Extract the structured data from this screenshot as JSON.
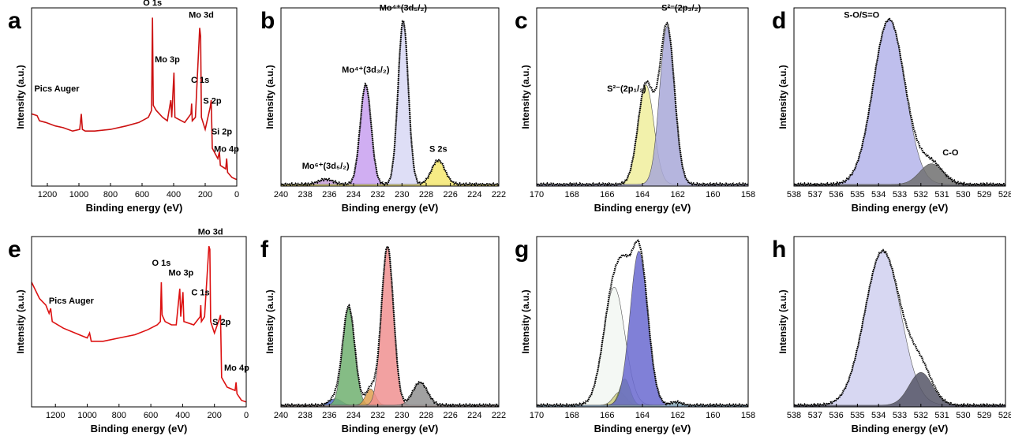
{
  "chart_data": [
    {
      "panel": "a",
      "type": "line",
      "xlabel": "Binding energy (eV)",
      "ylabel": "Intensity (a.u.)",
      "xlim": [
        1300,
        0
      ],
      "ylim": [
        0,
        1
      ],
      "reversed_x": true,
      "xticks": [
        1200,
        1000,
        800,
        600,
        400,
        200,
        0
      ],
      "line_color": "#cc1111",
      "survey": [
        [
          1300,
          0.42
        ],
        [
          1265,
          0.41
        ],
        [
          1250,
          0.38
        ],
        [
          1210,
          0.37
        ],
        [
          1150,
          0.35
        ],
        [
          1100,
          0.34
        ],
        [
          1040,
          0.32
        ],
        [
          995,
          0.33
        ],
        [
          985,
          0.42
        ],
        [
          978,
          0.33
        ],
        [
          960,
          0.32
        ],
        [
          900,
          0.32
        ],
        [
          800,
          0.33
        ],
        [
          700,
          0.35
        ],
        [
          620,
          0.37
        ],
        [
          560,
          0.4
        ],
        [
          540,
          0.44
        ],
        [
          534,
          0.98
        ],
        [
          529,
          0.47
        ],
        [
          510,
          0.44
        ],
        [
          470,
          0.4
        ],
        [
          440,
          0.38
        ],
        [
          418,
          0.5
        ],
        [
          412,
          0.4
        ],
        [
          398,
          0.66
        ],
        [
          392,
          0.4
        ],
        [
          330,
          0.37
        ],
        [
          290,
          0.42
        ],
        [
          286,
          0.48
        ],
        [
          282,
          0.38
        ],
        [
          262,
          0.4
        ],
        [
          235,
          0.92
        ],
        [
          229,
          0.87
        ],
        [
          224,
          0.4
        ],
        [
          200,
          0.33
        ],
        [
          168,
          0.46
        ],
        [
          162,
          0.5
        ],
        [
          155,
          0.22
        ],
        [
          120,
          0.16
        ],
        [
          110,
          0.2
        ],
        [
          104,
          0.12
        ],
        [
          70,
          0.1
        ],
        [
          64,
          0.16
        ],
        [
          58,
          0.08
        ],
        [
          30,
          0.05
        ],
        [
          5,
          0.04
        ],
        [
          0,
          0.04
        ]
      ],
      "annotations": [
        {
          "text": "O 1s",
          "x": 534,
          "y": 1.05
        },
        {
          "text": "Mo 3d",
          "x": 225,
          "y": 0.98
        },
        {
          "text": "Mo 3p",
          "x": 440,
          "y": 0.72
        },
        {
          "text": "C 1s",
          "x": 232,
          "y": 0.6
        },
        {
          "text": "Pics Auger",
          "x": 1140,
          "y": 0.55
        },
        {
          "text": "S 2p",
          "x": 155,
          "y": 0.48
        },
        {
          "text": "Si 2p",
          "x": 95,
          "y": 0.3
        },
        {
          "text": "Mo 4p",
          "x": 65,
          "y": 0.2
        }
      ]
    },
    {
      "panel": "b",
      "type": "area",
      "xlabel": "Binding energy (eV)",
      "ylabel": "Intensity (a.u.)",
      "xlim": [
        240,
        222
      ],
      "ylim": [
        0,
        1
      ],
      "reversed_x": true,
      "xticks": [
        240,
        238,
        236,
        234,
        232,
        230,
        228,
        226,
        224,
        222
      ],
      "components": [
        {
          "name": "Mo6+",
          "center": 236.3,
          "height": 0.03,
          "width": 0.6,
          "color": "#c8a0d8"
        },
        {
          "name": "Mo4+ 3d3/2",
          "center": 233.0,
          "height": 0.58,
          "width": 0.45,
          "color": "#c8a0f0"
        },
        {
          "name": "Mo4+ 3d5/2",
          "center": 229.9,
          "height": 0.95,
          "width": 0.42,
          "color": "#d8d8f5"
        },
        {
          "name": "S 2s",
          "center": 227.0,
          "height": 0.14,
          "width": 0.55,
          "color": "#f5e870"
        }
      ],
      "annotations": [
        {
          "text": "Mo⁴⁺(3d₅/₂)",
          "x": 229.9,
          "y": 1.02
        },
        {
          "text": "Mo⁴⁺(3d₃/₂)",
          "x": 233.0,
          "y": 0.66
        },
        {
          "text": "Mo⁶⁺(3d₅/₂)",
          "x": 236.3,
          "y": 0.1
        },
        {
          "text": "S 2s",
          "x": 227.0,
          "y": 0.2
        }
      ]
    },
    {
      "panel": "c",
      "type": "area",
      "xlabel": "Binding energy (eV)",
      "ylabel": "Intensity (a.u.)",
      "xlim": [
        170,
        158
      ],
      "ylim": [
        0,
        1
      ],
      "reversed_x": true,
      "xticks": [
        170,
        168,
        166,
        164,
        162,
        160,
        158
      ],
      "components": [
        {
          "name": "S2- 2p1/2",
          "center": 163.8,
          "height": 0.58,
          "width": 0.45,
          "color": "#f0ee9c"
        },
        {
          "name": "S2- 2p3/2",
          "center": 162.6,
          "height": 0.92,
          "width": 0.42,
          "color": "#a8a8d8"
        }
      ],
      "annotations": [
        {
          "text": "S²⁻(2p₃/₂)",
          "x": 161.8,
          "y": 1.02
        },
        {
          "text": "S²⁻(2p₁/₂)",
          "x": 164.9,
          "y": 0.55
        }
      ]
    },
    {
      "panel": "d",
      "type": "area",
      "xlabel": "Binding energy (eV)",
      "ylabel": "Intensity (a.u.)",
      "xlim": [
        538,
        528
      ],
      "ylim": [
        0,
        1
      ],
      "reversed_x": true,
      "xticks": [
        538,
        537,
        536,
        535,
        534,
        533,
        532,
        531,
        530,
        529,
        528
      ],
      "components": [
        {
          "name": "S-O/S=O",
          "center": 533.5,
          "height": 0.96,
          "width": 0.75,
          "color": "#b4b4ea"
        },
        {
          "name": "C-O",
          "center": 531.5,
          "height": 0.12,
          "width": 0.55,
          "color": "#707070"
        }
      ],
      "annotations": [
        {
          "text": "S-O/S=O",
          "x": 534.8,
          "y": 0.98
        },
        {
          "text": "C-O",
          "x": 530.6,
          "y": 0.18
        }
      ]
    },
    {
      "panel": "e",
      "type": "line",
      "xlabel": "Binding energy (eV)",
      "ylabel": "Intensity (a.u.)",
      "xlim": [
        1350,
        0
      ],
      "ylim": [
        0,
        1
      ],
      "reversed_x": true,
      "xticks": [
        1200,
        1000,
        800,
        600,
        400,
        200,
        0
      ],
      "line_color": "#dd1111",
      "survey": [
        [
          1350,
          0.76
        ],
        [
          1300,
          0.66
        ],
        [
          1260,
          0.62
        ],
        [
          1240,
          0.57
        ],
        [
          1230,
          0.6
        ],
        [
          1220,
          0.52
        ],
        [
          1150,
          0.48
        ],
        [
          1050,
          0.44
        ],
        [
          1000,
          0.42
        ],
        [
          985,
          0.45
        ],
        [
          975,
          0.4
        ],
        [
          900,
          0.4
        ],
        [
          800,
          0.42
        ],
        [
          700,
          0.44
        ],
        [
          620,
          0.47
        ],
        [
          560,
          0.5
        ],
        [
          540,
          0.52
        ],
        [
          534,
          0.76
        ],
        [
          529,
          0.56
        ],
        [
          510,
          0.52
        ],
        [
          470,
          0.5
        ],
        [
          440,
          0.5
        ],
        [
          418,
          0.72
        ],
        [
          412,
          0.55
        ],
        [
          398,
          0.7
        ],
        [
          392,
          0.52
        ],
        [
          330,
          0.5
        ],
        [
          290,
          0.55
        ],
        [
          286,
          0.62
        ],
        [
          282,
          0.52
        ],
        [
          262,
          0.55
        ],
        [
          235,
          0.98
        ],
        [
          229,
          0.96
        ],
        [
          224,
          0.52
        ],
        [
          200,
          0.45
        ],
        [
          168,
          0.54
        ],
        [
          162,
          0.56
        ],
        [
          155,
          0.18
        ],
        [
          120,
          0.12
        ],
        [
          70,
          0.1
        ],
        [
          64,
          0.15
        ],
        [
          58,
          0.08
        ],
        [
          30,
          0.04
        ],
        [
          0,
          0.03
        ]
      ],
      "annotations": [
        {
          "text": "Mo 3d",
          "x": 225,
          "y": 1.05
        },
        {
          "text": "O 1s",
          "x": 534,
          "y": 0.86
        },
        {
          "text": "Mo 3p",
          "x": 410,
          "y": 0.8
        },
        {
          "text": "C 1s",
          "x": 288,
          "y": 0.68
        },
        {
          "text": "Pics Auger",
          "x": 1100,
          "y": 0.63
        },
        {
          "text": "S 2p",
          "x": 155,
          "y": 0.5
        },
        {
          "text": "Mo 4p",
          "x": 60,
          "y": 0.22
        }
      ]
    },
    {
      "panel": "f",
      "type": "area",
      "xlabel": "Binding energy (eV)",
      "ylabel": "Intensity (a.u.)",
      "xlim": [
        240,
        222
      ],
      "ylim": [
        0,
        1
      ],
      "reversed_x": true,
      "xticks": [
        240,
        238,
        236,
        234,
        232,
        230,
        228,
        226,
        224,
        222
      ],
      "components": [
        {
          "name": "blue",
          "center": 235.5,
          "height": 0.04,
          "width": 0.5,
          "color": "#5070d0"
        },
        {
          "name": "green",
          "center": 234.4,
          "height": 0.6,
          "width": 0.5,
          "color": "#70b070"
        },
        {
          "name": "orange",
          "center": 232.6,
          "height": 0.1,
          "width": 0.4,
          "color": "#e0a050"
        },
        {
          "name": "pink",
          "center": 231.2,
          "height": 0.97,
          "width": 0.5,
          "color": "#f09090"
        },
        {
          "name": "grey",
          "center": 228.5,
          "height": 0.14,
          "width": 0.6,
          "color": "#909090"
        }
      ],
      "annotations": []
    },
    {
      "panel": "g",
      "type": "area",
      "xlabel": "Binding energy (eV)",
      "ylabel": "Intensity (a.u.)",
      "xlim": [
        170,
        158
      ],
      "ylim": [
        0,
        1
      ],
      "reversed_x": true,
      "xticks": [
        170,
        168,
        166,
        164,
        162,
        160,
        158
      ],
      "components": [
        {
          "name": "white",
          "center": 165.6,
          "height": 0.72,
          "width": 0.6,
          "color": "#f2f7f2"
        },
        {
          "name": "olive",
          "center": 165.3,
          "height": 0.08,
          "width": 0.35,
          "color": "#d0d080"
        },
        {
          "name": "green",
          "center": 165.0,
          "height": 0.16,
          "width": 0.3,
          "color": "#90c040"
        },
        {
          "name": "blue",
          "center": 164.2,
          "height": 0.94,
          "width": 0.5,
          "color": "#6a6ad0"
        },
        {
          "name": "small",
          "center": 162.1,
          "height": 0.02,
          "width": 0.3,
          "color": "#90b0c0"
        }
      ],
      "annotations": []
    },
    {
      "panel": "h",
      "type": "area",
      "xlabel": "Binding energy (eV)",
      "ylabel": "Intensity (a.u.)",
      "xlim": [
        538,
        528
      ],
      "ylim": [
        0,
        1
      ],
      "reversed_x": true,
      "xticks": [
        538,
        537,
        536,
        535,
        534,
        533,
        532,
        531,
        530,
        529,
        528
      ],
      "components": [
        {
          "name": "lavender",
          "center": 533.8,
          "height": 0.94,
          "width": 0.85,
          "color": "#d0d0f0"
        },
        {
          "name": "dark",
          "center": 532.0,
          "height": 0.2,
          "width": 0.55,
          "color": "#555566"
        }
      ],
      "annotations": []
    }
  ]
}
